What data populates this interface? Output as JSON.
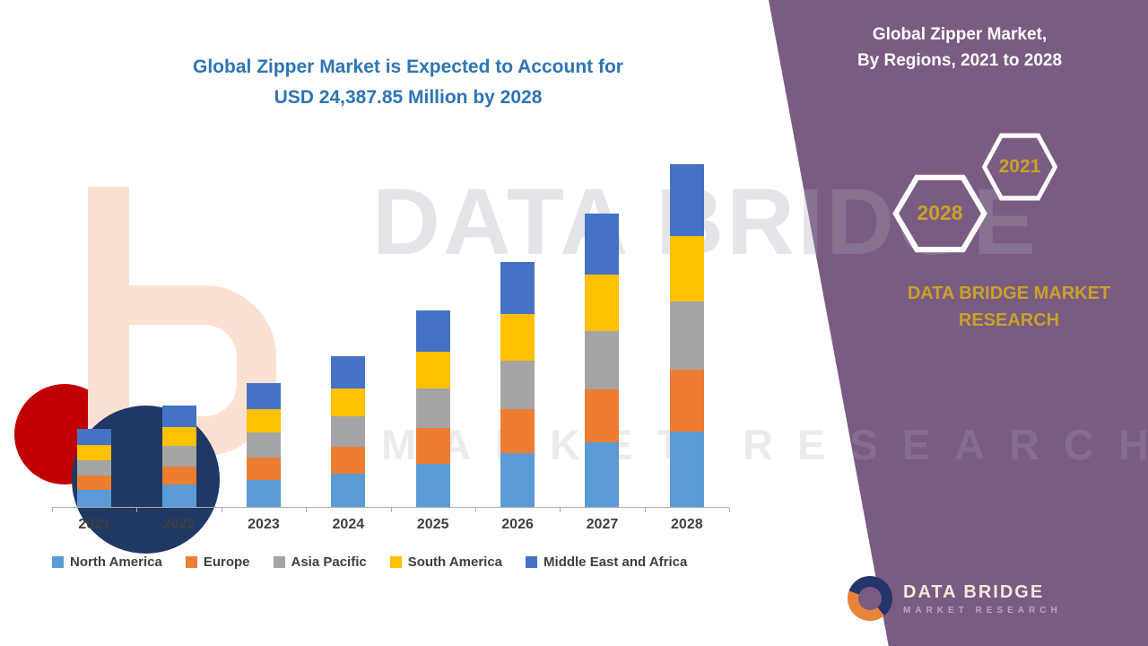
{
  "left_title": {
    "line1": "Global Zipper Market is Expected to Account for",
    "line2": "USD 24,387.85 Million by 2028"
  },
  "right_panel": {
    "title_line1": "Global Zipper Market,",
    "title_line2": "By Regions, 2021 to 2028",
    "hexagons": [
      {
        "label": "2028"
      },
      {
        "label": "2021"
      }
    ],
    "brand_line1": "DATA BRIDGE MARKET",
    "brand_line2": "RESEARCH"
  },
  "watermark": {
    "line1": "DATA BRIDGE",
    "line2": "MARKET RESEARCH"
  },
  "footer_logo": {
    "name": "DATA BRIDGE",
    "subtitle": "MARKET RESEARCH"
  },
  "colors": {
    "accent_purple": "#7A5B82",
    "title_blue": "#2E74B5",
    "gold": "#C9A227",
    "axis_gray": "#ABABAB"
  },
  "chart_data": {
    "type": "bar",
    "stacked": true,
    "title": "Global Zipper Market is Expected to Account for USD 24,387.85 Million by 2028",
    "unit": "USD Million",
    "categories": [
      "2021",
      "2022",
      "2023",
      "2024",
      "2025",
      "2026",
      "2027",
      "2028"
    ],
    "series": [
      {
        "name": "North America",
        "color": "#5B9BD5",
        "values": [
          1220,
          1585,
          1935,
          2355,
          3080,
          3830,
          4600,
          5365
        ]
      },
      {
        "name": "Europe",
        "color": "#ED7D31",
        "values": [
          1000,
          1295,
          1585,
          1925,
          2520,
          3130,
          3760,
          4390
        ]
      },
      {
        "name": "Asia Pacific",
        "color": "#A5A5A5",
        "values": [
          1110,
          1440,
          1760,
          2140,
          2800,
          3480,
          4180,
          4878
        ]
      },
      {
        "name": "South America",
        "color": "#FFC000",
        "values": [
          1055,
          1370,
          1670,
          2035,
          2660,
          3305,
          3970,
          4634
        ]
      },
      {
        "name": "Middle East and Africa",
        "color": "#4472C4",
        "values": [
          1165,
          1510,
          1850,
          2245,
          2940,
          3655,
          4390,
          5120.85
        ]
      }
    ],
    "totals": [
      5550,
      7200,
      8800,
      10700,
      14000,
      17400,
      20900,
      24387.85
    ],
    "ylim": [
      0,
      24387.85
    ],
    "xlabel": "",
    "ylabel": "USD Million",
    "grid": false,
    "legend_position": "bottom"
  }
}
